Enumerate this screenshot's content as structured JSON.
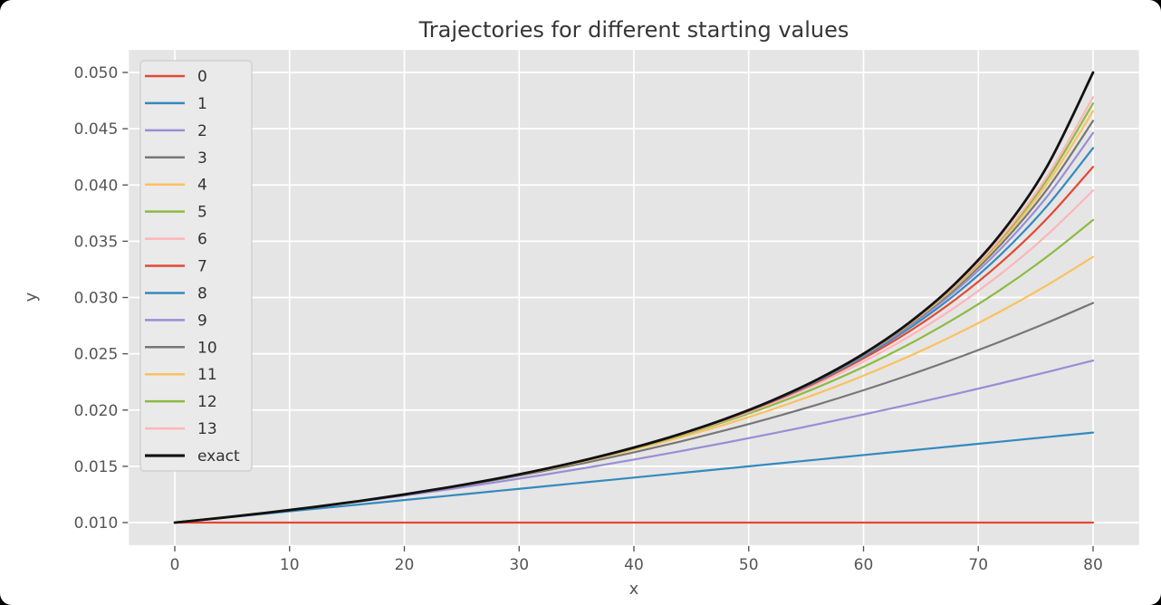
{
  "figure": {
    "title": "Trajectories for different starting values",
    "xlabel": "x",
    "ylabel": "y"
  },
  "style": {
    "figure_bg": "#ffffff",
    "axes_bg": "#e5e5e5",
    "grid_color": "#ffffff",
    "tick_color": "#555555",
    "tick_label_color": "#555555",
    "axis_label_color": "#555555",
    "title_color": "#363636",
    "legend_bg": "#eaeaea",
    "legend_border": "#cccccc",
    "legend_text_color": "#333333"
  },
  "chart_data": {
    "type": "line",
    "title": "Trajectories for different starting values",
    "xlabel": "x",
    "ylabel": "y",
    "xlim": [
      -4,
      84
    ],
    "ylim": [
      0.008,
      0.052
    ],
    "xticks": [
      0,
      10,
      20,
      30,
      40,
      50,
      60,
      70,
      80
    ],
    "yticks": [
      0.01,
      0.015,
      0.02,
      0.025,
      0.03,
      0.035,
      0.04,
      0.045,
      0.05
    ],
    "ytick_labels": [
      "0.010",
      "0.015",
      "0.020",
      "0.025",
      "0.030",
      "0.035",
      "0.040",
      "0.045",
      "0.050"
    ],
    "grid": true,
    "legend_position": "upper left",
    "x": [
      0,
      4,
      8,
      12,
      16,
      20,
      24,
      28,
      32,
      36,
      40,
      44,
      48,
      52,
      56,
      60,
      64,
      68,
      72,
      76,
      80
    ],
    "series": [
      {
        "name": "0",
        "color": "#E24A33",
        "width": 2.2,
        "values": [
          0.01,
          0.01,
          0.01,
          0.01,
          0.01,
          0.01,
          0.01,
          0.01,
          0.01,
          0.01,
          0.01,
          0.01,
          0.01,
          0.01,
          0.01,
          0.01,
          0.01,
          0.01,
          0.01,
          0.01,
          0.01
        ]
      },
      {
        "name": "1",
        "color": "#348ABD",
        "width": 2.2,
        "values": [
          0.01,
          0.0104,
          0.0108,
          0.0112,
          0.0116,
          0.012,
          0.0124,
          0.0128,
          0.0132,
          0.0136,
          0.014,
          0.0144,
          0.0148,
          0.0152,
          0.0156,
          0.016,
          0.0164,
          0.0168,
          0.0172,
          0.0176,
          0.018
        ]
      },
      {
        "name": "2",
        "color": "#988ED5",
        "width": 2.2,
        "values": [
          0.01,
          0.010416,
          0.010864,
          0.011344,
          0.011856,
          0.0124,
          0.012976,
          0.013584,
          0.014224,
          0.014896,
          0.0156,
          0.016336,
          0.017104,
          0.017904,
          0.018736,
          0.0196,
          0.020496,
          0.021424,
          0.022384,
          0.023376,
          0.0244
        ]
      },
      {
        "name": "3",
        "color": "#777777",
        "width": 2.2,
        "values": [
          0.01,
          0.010417,
          0.010869,
          0.011361,
          0.011897,
          0.01248,
          0.013114,
          0.013804,
          0.014552,
          0.015363,
          0.01624,
          0.017188,
          0.01821,
          0.01931,
          0.020492,
          0.02176,
          0.023117,
          0.024568,
          0.026116,
          0.027766,
          0.02952
        ]
      },
      {
        "name": "4",
        "color": "#FBC15E",
        "width": 2.2,
        "values": [
          0.01,
          0.010417,
          0.010869,
          0.011363,
          0.011903,
          0.012496,
          0.013147,
          0.013865,
          0.014657,
          0.015531,
          0.016496,
          0.017563,
          0.018741,
          0.020041,
          0.021475,
          0.023056,
          0.024795,
          0.026706,
          0.028803,
          0.031102,
          0.033616
        ]
      },
      {
        "name": "5",
        "color": "#8EBA42",
        "width": 2.2,
        "values": [
          0.01,
          0.010417,
          0.01087,
          0.011364,
          0.011904,
          0.012499,
          0.013155,
          0.013882,
          0.014691,
          0.015591,
          0.016598,
          0.017728,
          0.018996,
          0.020421,
          0.022026,
          0.023834,
          0.025869,
          0.02816,
          0.030739,
          0.033638,
          0.036893
        ]
      },
      {
        "name": "6",
        "color": "#FFB5B8",
        "width": 2.2,
        "values": [
          0.01,
          0.010417,
          0.01087,
          0.011364,
          0.011905,
          0.0125,
          0.013157,
          0.013887,
          0.014701,
          0.015613,
          0.016639,
          0.0178,
          0.019118,
          0.020619,
          0.022335,
          0.0243,
          0.026556,
          0.029149,
          0.032132,
          0.035564,
          0.039514
        ]
      },
      {
        "name": "7",
        "color": "#E24A33",
        "width": 2.2,
        "values": [
          0.01,
          0.010417,
          0.01087,
          0.011364,
          0.011905,
          0.0125,
          0.013158,
          0.013888,
          0.014704,
          0.015621,
          0.016656,
          0.017832,
          0.019177,
          0.020722,
          0.022508,
          0.02458,
          0.026996,
          0.029821,
          0.033135,
          0.037029,
          0.041611
        ]
      },
      {
        "name": "8",
        "color": "#348ABD",
        "width": 2.2,
        "values": [
          0.01,
          0.010417,
          0.01087,
          0.011364,
          0.011905,
          0.0125,
          0.013158,
          0.013889,
          0.014705,
          0.015624,
          0.016662,
          0.017846,
          0.019205,
          0.020775,
          0.022604,
          0.024748,
          0.027277,
          0.030278,
          0.033857,
          0.038142,
          0.043289
        ]
      },
      {
        "name": "9",
        "color": "#988ED5",
        "width": 2.2,
        "values": [
          0.01,
          0.010417,
          0.01087,
          0.011364,
          0.011905,
          0.0125,
          0.013158,
          0.013889,
          0.014706,
          0.015625,
          0.016665,
          0.017852,
          0.019218,
          0.020803,
          0.022658,
          0.024849,
          0.027457,
          0.030589,
          0.034377,
          0.038988,
          0.044631
        ]
      },
      {
        "name": "10",
        "color": "#777777",
        "width": 2.2,
        "values": [
          0.01,
          0.010417,
          0.01087,
          0.011364,
          0.011905,
          0.0125,
          0.013158,
          0.013889,
          0.014706,
          0.015625,
          0.016666,
          0.017855,
          0.019225,
          0.020818,
          0.022689,
          0.024909,
          0.027573,
          0.030801,
          0.034752,
          0.039631,
          0.045705
        ]
      },
      {
        "name": "11",
        "color": "#FBC15E",
        "width": 2.2,
        "values": [
          0.01,
          0.010417,
          0.01087,
          0.011364,
          0.011905,
          0.0125,
          0.013158,
          0.013889,
          0.014706,
          0.015625,
          0.016666,
          0.017856,
          0.019228,
          0.020825,
          0.022706,
          0.024946,
          0.027647,
          0.030944,
          0.035021,
          0.040119,
          0.046564
        ]
      },
      {
        "name": "12",
        "color": "#8EBA42",
        "width": 2.2,
        "values": [
          0.01,
          0.010417,
          0.01087,
          0.011364,
          0.011905,
          0.0125,
          0.013158,
          0.013889,
          0.014706,
          0.015625,
          0.016667,
          0.017857,
          0.019229,
          0.020829,
          0.022715,
          0.024967,
          0.027694,
          0.031042,
          0.035215,
          0.040491,
          0.047251
        ]
      },
      {
        "name": "13",
        "color": "#FFB5B8",
        "width": 2.2,
        "values": [
          0.01,
          0.010417,
          0.01087,
          0.011364,
          0.011905,
          0.0125,
          0.013158,
          0.013889,
          0.014706,
          0.015625,
          0.016667,
          0.017857,
          0.01923,
          0.020831,
          0.022721,
          0.02498,
          0.027724,
          0.031109,
          0.035355,
          0.040773,
          0.047801
        ]
      },
      {
        "name": "exact",
        "color": "#111111",
        "width": 2.8,
        "values": [
          0.01,
          0.010417,
          0.01087,
          0.011364,
          0.011905,
          0.0125,
          0.013158,
          0.013889,
          0.014706,
          0.015625,
          0.016667,
          0.017857,
          0.019231,
          0.020833,
          0.022727,
          0.025,
          0.027778,
          0.03125,
          0.035714,
          0.041667,
          0.05
        ]
      }
    ]
  }
}
